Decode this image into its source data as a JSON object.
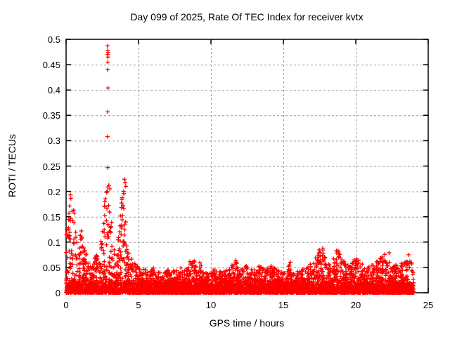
{
  "page": {
    "background": "#ffffff"
  },
  "chart_data": {
    "type": "scatter",
    "title": "Day 099 of 2025, Rate Of TEC Index for receiver kvtx",
    "xlabel": "GPS time / hours",
    "ylabel": "ROTI / TECUs",
    "xlim": [
      0,
      25
    ],
    "ylim": [
      0,
      0.5
    ],
    "xtick_values": [
      0,
      5,
      10,
      15,
      20,
      25
    ],
    "xtick_labels": [
      "0",
      "5",
      "10",
      "15",
      "20",
      "25"
    ],
    "ytick_values": [
      0,
      0.05,
      0.1,
      0.15,
      0.2,
      0.25,
      0.3,
      0.35,
      0.4,
      0.45,
      0.5
    ],
    "ytick_labels": [
      "0",
      "0.05",
      "0.1",
      "0.15",
      "0.2",
      "0.25",
      "0.3",
      "0.35",
      "0.4",
      "0.45",
      "0.5"
    ],
    "grid": true,
    "legend": "none",
    "marker": "plus",
    "marker_color": "#ff0000",
    "grid_color": "#9a9a9a",
    "frame_color": "#000000",
    "data_hours_range": [
      0,
      24
    ],
    "envelope_step_hours": 0.25,
    "envelope_max_tecu": [
      0.11,
      0.195,
      0.165,
      0.1,
      0.125,
      0.095,
      0.065,
      0.055,
      0.07,
      0.085,
      0.135,
      0.215,
      0.205,
      0.095,
      0.075,
      0.175,
      0.225,
      0.085,
      0.07,
      0.06,
      0.05,
      0.045,
      0.05,
      0.042,
      0.05,
      0.045,
      0.04,
      0.05,
      0.045,
      0.05,
      0.042,
      0.048,
      0.05,
      0.045,
      0.06,
      0.068,
      0.065,
      0.06,
      0.045,
      0.04,
      0.042,
      0.05,
      0.045,
      0.04,
      0.045,
      0.05,
      0.065,
      0.06,
      0.045,
      0.05,
      0.055,
      0.05,
      0.045,
      0.055,
      0.05,
      0.045,
      0.05,
      0.055,
      0.05,
      0.045,
      0.04,
      0.05,
      0.065,
      0.055,
      0.05,
      0.045,
      0.05,
      0.055,
      0.06,
      0.07,
      0.09,
      0.085,
      0.06,
      0.055,
      0.08,
      0.085,
      0.07,
      0.06,
      0.055,
      0.06,
      0.07,
      0.065,
      0.055,
      0.05,
      0.055,
      0.06,
      0.065,
      0.07,
      0.08,
      0.06,
      0.065,
      0.055,
      0.06,
      0.065,
      0.075,
      0.065,
      0.055
    ],
    "outlier_points": [
      [
        2.86,
        0.487
      ],
      [
        2.88,
        0.478
      ],
      [
        2.9,
        0.474
      ],
      [
        2.87,
        0.47
      ],
      [
        2.89,
        0.465
      ],
      [
        2.88,
        0.455
      ],
      [
        2.87,
        0.44
      ],
      [
        2.89,
        0.404
      ],
      [
        2.87,
        0.357
      ],
      [
        2.86,
        0.308
      ],
      [
        2.88,
        0.247
      ],
      [
        2.95,
        0.212
      ],
      [
        3.02,
        0.205
      ],
      [
        2.8,
        0.198
      ],
      [
        0.3,
        0.193
      ],
      [
        0.33,
        0.186
      ],
      [
        4.02,
        0.224
      ],
      [
        4.08,
        0.218
      ],
      [
        4.12,
        0.21
      ],
      [
        3.97,
        0.2
      ],
      [
        0.52,
        0.163
      ],
      [
        0.56,
        0.157
      ],
      [
        1.05,
        0.122
      ],
      [
        11.72,
        0.064
      ],
      [
        11.75,
        0.06
      ],
      [
        17.72,
        0.088
      ],
      [
        18.78,
        0.083
      ],
      [
        22.3,
        0.079
      ],
      [
        23.65,
        0.075
      ]
    ],
    "random_seed": 99,
    "points_per_quarter_hour": 60
  }
}
